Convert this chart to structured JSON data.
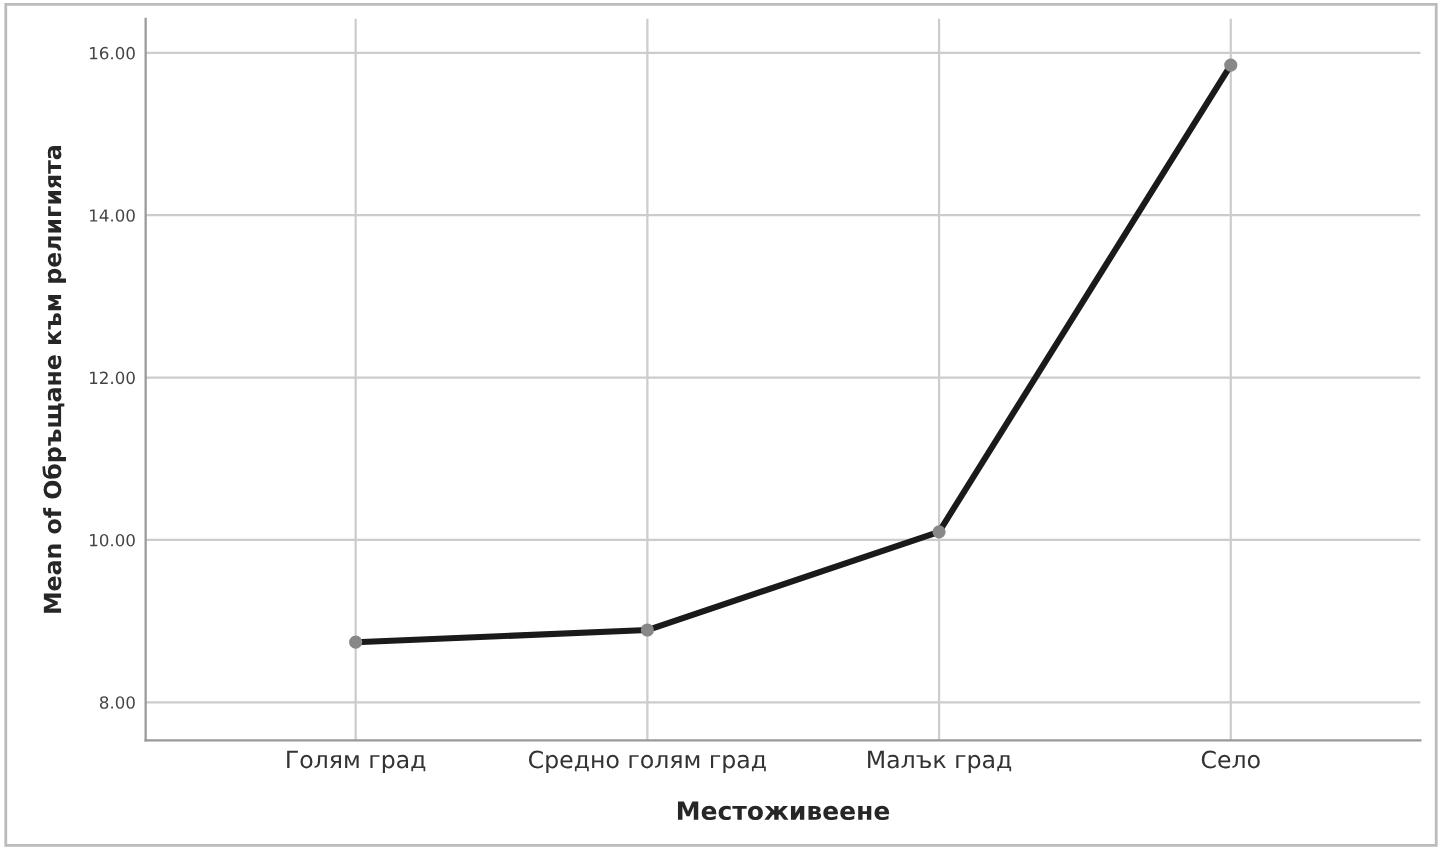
{
  "chart_data": {
    "type": "line",
    "xlabel": "Местоживеене",
    "ylabel": "Mean of Обръщане към религията",
    "categories": [
      "Голям град",
      "Средно голям град",
      "Малък град",
      "Село"
    ],
    "series": [
      {
        "color": "#1a1a1a",
        "values": [
          8.74,
          8.89,
          10.1,
          15.85
        ]
      }
    ],
    "ylim": [
      7.53,
      16.42
    ],
    "yticks": [
      {
        "value": 8,
        "label": "8.00"
      },
      {
        "value": 10,
        "label": "10.00"
      },
      {
        "value": 12,
        "label": "12.00"
      },
      {
        "value": 14,
        "label": "14.00"
      },
      {
        "value": 16,
        "label": "16.00"
      }
    ],
    "grid": true,
    "marker": "circle",
    "line_style": "solid"
  }
}
